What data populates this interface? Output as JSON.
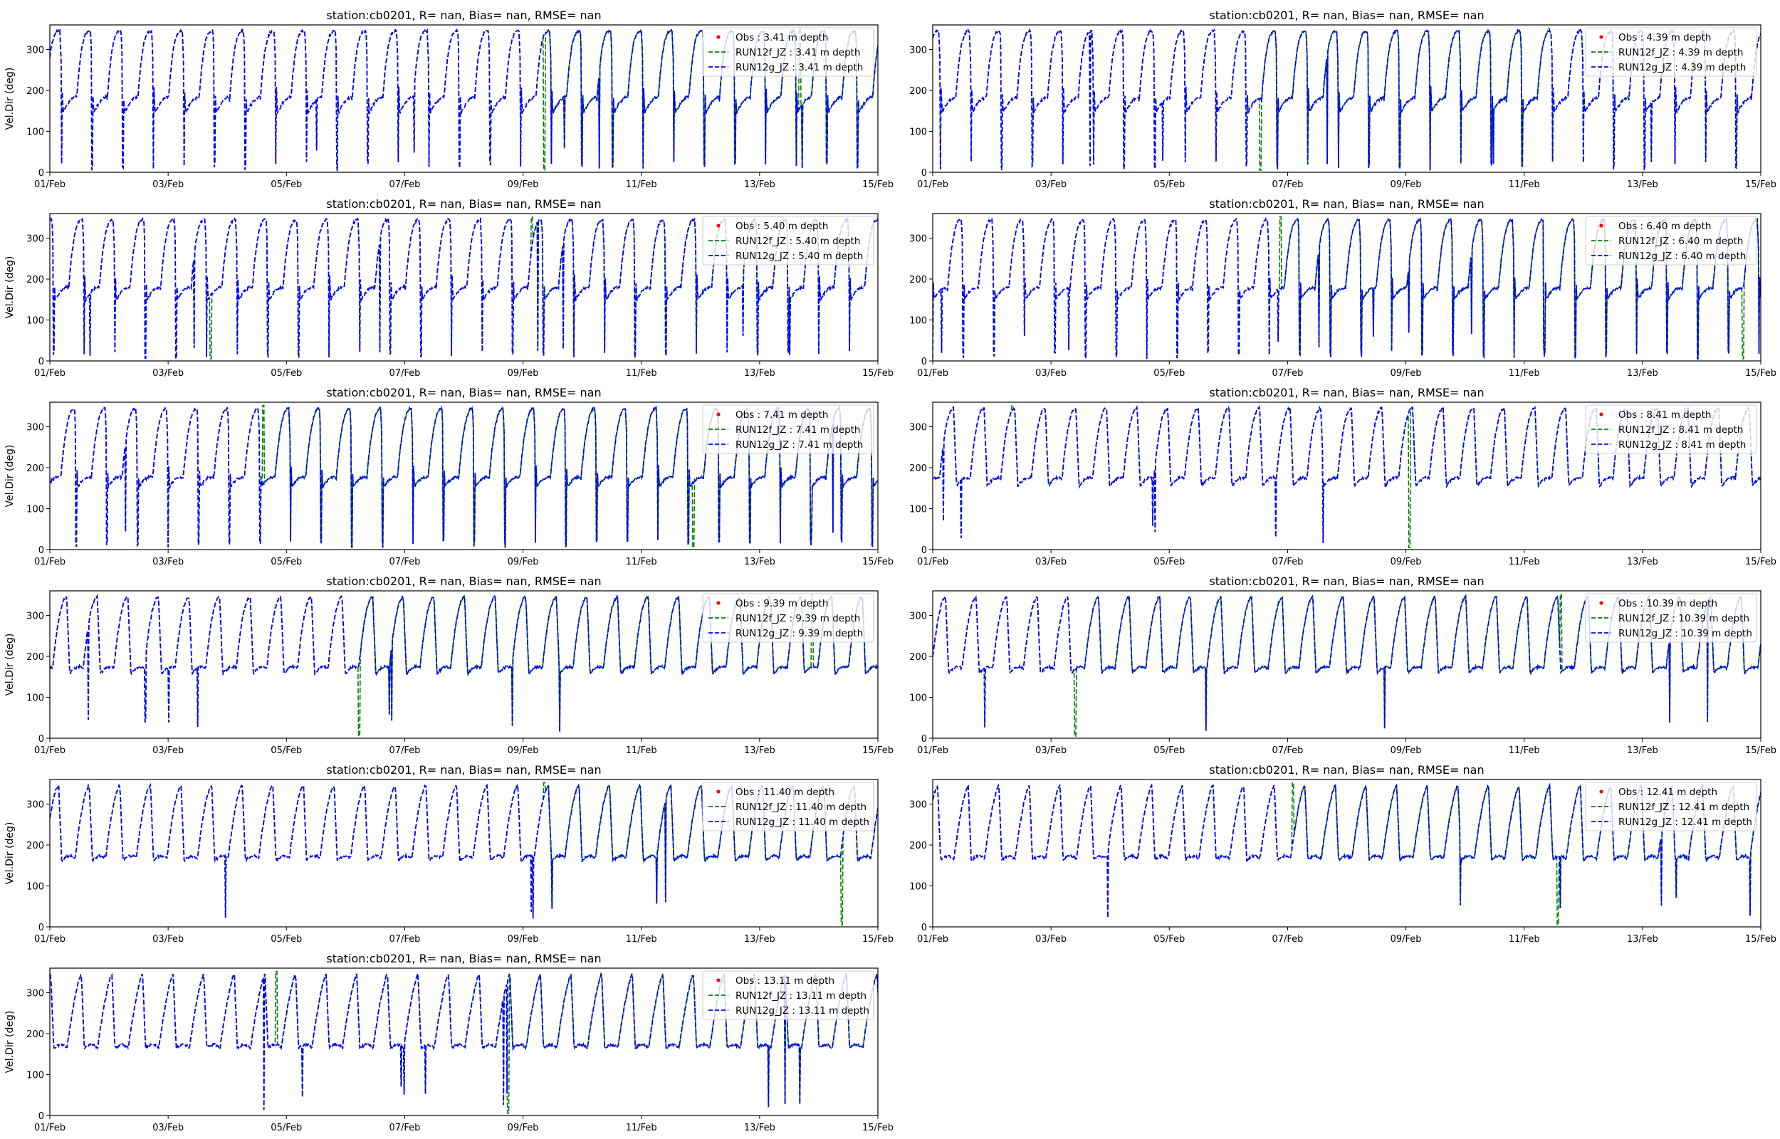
{
  "figure": {
    "xlabel": "",
    "ylabel": "Vel.Dir (deg)",
    "colors": {
      "obs": "#ff0000",
      "run12f": "#008000",
      "run12g": "#0000ff",
      "axes": "#000000",
      "legend_border": "#cccccc"
    }
  },
  "chart_data": [
    {
      "type": "line",
      "title": "station:cb0201, R=   nan, Bias=   nan, RMSE=   nan",
      "ylabel": "Vel.Dir (deg)",
      "xlabel": "",
      "x_ticks": [
        "01/Feb",
        "03/Feb",
        "05/Feb",
        "07/Feb",
        "09/Feb",
        "11/Feb",
        "13/Feb",
        "15/Feb"
      ],
      "xlim": [
        0,
        14
      ],
      "ylim": [
        0,
        360
      ],
      "y_ticks": [
        0,
        100,
        200,
        300
      ],
      "legend": "upper right",
      "series": [
        {
          "name": "Obs : 3.41 m depth",
          "style": "point",
          "values": []
        },
        {
          "name": "RUN12f_JZ : 3.41 m depth",
          "style": "dashed"
        },
        {
          "name": "RUN12g_JZ : 3.41 m depth",
          "style": "dashed"
        }
      ],
      "depth": 3.41,
      "seed": 1
    },
    {
      "type": "line",
      "title": "station:cb0201, R=   nan, Bias=   nan, RMSE=   nan",
      "ylabel": "",
      "xlabel": "",
      "x_ticks": [
        "01/Feb",
        "03/Feb",
        "05/Feb",
        "07/Feb",
        "09/Feb",
        "11/Feb",
        "13/Feb",
        "15/Feb"
      ],
      "xlim": [
        0,
        14
      ],
      "ylim": [
        0,
        360
      ],
      "y_ticks": [
        0,
        100,
        200,
        300
      ],
      "legend": "upper right",
      "series": [
        {
          "name": "Obs : 4.39 m depth",
          "style": "point",
          "values": []
        },
        {
          "name": "RUN12f_JZ : 4.39 m depth",
          "style": "dashed"
        },
        {
          "name": "RUN12g_JZ : 4.39 m depth",
          "style": "dashed"
        }
      ],
      "depth": 4.39,
      "seed": 2
    },
    {
      "type": "line",
      "title": "station:cb0201, R=   nan, Bias=   nan, RMSE=   nan",
      "ylabel": "Vel.Dir (deg)",
      "xlabel": "",
      "x_ticks": [
        "01/Feb",
        "03/Feb",
        "05/Feb",
        "07/Feb",
        "09/Feb",
        "11/Feb",
        "13/Feb",
        "15/Feb"
      ],
      "xlim": [
        0,
        14
      ],
      "ylim": [
        0,
        360
      ],
      "y_ticks": [
        0,
        100,
        200,
        300
      ],
      "legend": "upper right",
      "series": [
        {
          "name": "Obs : 5.40 m depth",
          "style": "point",
          "values": []
        },
        {
          "name": "RUN12f_JZ : 5.40 m depth",
          "style": "dashed"
        },
        {
          "name": "RUN12g_JZ : 5.40 m depth",
          "style": "dashed"
        }
      ],
      "depth": 5.4,
      "seed": 3
    },
    {
      "type": "line",
      "title": "station:cb0201, R=   nan, Bias=   nan, RMSE=   nan",
      "ylabel": "",
      "xlabel": "",
      "x_ticks": [
        "01/Feb",
        "03/Feb",
        "05/Feb",
        "07/Feb",
        "09/Feb",
        "11/Feb",
        "13/Feb",
        "15/Feb"
      ],
      "xlim": [
        0,
        14
      ],
      "ylim": [
        0,
        360
      ],
      "y_ticks": [
        0,
        100,
        200,
        300
      ],
      "legend": "upper right",
      "series": [
        {
          "name": "Obs : 6.40 m depth",
          "style": "point",
          "values": []
        },
        {
          "name": "RUN12f_JZ : 6.40 m depth",
          "style": "dashed"
        },
        {
          "name": "RUN12g_JZ : 6.40 m depth",
          "style": "dashed"
        }
      ],
      "depth": 6.4,
      "seed": 4
    },
    {
      "type": "line",
      "title": "station:cb0201, R=   nan, Bias=   nan, RMSE=   nan",
      "ylabel": "Vel.Dir (deg)",
      "xlabel": "",
      "x_ticks": [
        "01/Feb",
        "03/Feb",
        "05/Feb",
        "07/Feb",
        "09/Feb",
        "11/Feb",
        "13/Feb",
        "15/Feb"
      ],
      "xlim": [
        0,
        14
      ],
      "ylim": [
        0,
        360
      ],
      "y_ticks": [
        0,
        100,
        200,
        300
      ],
      "legend": "upper right",
      "series": [
        {
          "name": "Obs : 7.41 m depth",
          "style": "point",
          "values": []
        },
        {
          "name": "RUN12f_JZ : 7.41 m depth",
          "style": "dashed"
        },
        {
          "name": "RUN12g_JZ : 7.41 m depth",
          "style": "dashed"
        }
      ],
      "depth": 7.41,
      "seed": 5
    },
    {
      "type": "line",
      "title": "station:cb0201, R=   nan, Bias=   nan, RMSE=   nan",
      "ylabel": "",
      "xlabel": "",
      "x_ticks": [
        "01/Feb",
        "03/Feb",
        "05/Feb",
        "07/Feb",
        "09/Feb",
        "11/Feb",
        "13/Feb",
        "15/Feb"
      ],
      "xlim": [
        0,
        14
      ],
      "ylim": [
        0,
        360
      ],
      "y_ticks": [
        0,
        100,
        200,
        300
      ],
      "legend": "upper right",
      "series": [
        {
          "name": "Obs : 8.41 m depth",
          "style": "point",
          "values": []
        },
        {
          "name": "RUN12f_JZ : 8.41 m depth",
          "style": "dashed"
        },
        {
          "name": "RUN12g_JZ : 8.41 m depth",
          "style": "dashed"
        }
      ],
      "depth": 8.41,
      "seed": 6
    },
    {
      "type": "line",
      "title": "station:cb0201, R=   nan, Bias=   nan, RMSE=   nan",
      "ylabel": "Vel.Dir (deg)",
      "xlabel": "",
      "x_ticks": [
        "01/Feb",
        "03/Feb",
        "05/Feb",
        "07/Feb",
        "09/Feb",
        "11/Feb",
        "13/Feb",
        "15/Feb"
      ],
      "xlim": [
        0,
        14
      ],
      "ylim": [
        0,
        360
      ],
      "y_ticks": [
        0,
        100,
        200,
        300
      ],
      "legend": "upper right",
      "series": [
        {
          "name": "Obs : 9.39 m depth",
          "style": "point",
          "values": []
        },
        {
          "name": "RUN12f_JZ : 9.39 m depth",
          "style": "dashed"
        },
        {
          "name": "RUN12g_JZ : 9.39 m depth",
          "style": "dashed"
        }
      ],
      "depth": 9.39,
      "seed": 7
    },
    {
      "type": "line",
      "title": "station:cb0201, R=   nan, Bias=   nan, RMSE=   nan",
      "ylabel": "",
      "xlabel": "",
      "x_ticks": [
        "01/Feb",
        "03/Feb",
        "05/Feb",
        "07/Feb",
        "09/Feb",
        "11/Feb",
        "13/Feb",
        "15/Feb"
      ],
      "xlim": [
        0,
        14
      ],
      "ylim": [
        0,
        360
      ],
      "y_ticks": [
        0,
        100,
        200,
        300
      ],
      "legend": "upper right",
      "series": [
        {
          "name": "Obs : 10.39 m depth",
          "style": "point",
          "values": []
        },
        {
          "name": "RUN12f_JZ : 10.39 m depth",
          "style": "dashed"
        },
        {
          "name": "RUN12g_JZ : 10.39 m depth",
          "style": "dashed"
        }
      ],
      "depth": 10.39,
      "seed": 8
    },
    {
      "type": "line",
      "title": "station:cb0201, R=   nan, Bias=   nan, RMSE=   nan",
      "ylabel": "Vel.Dir (deg)",
      "xlabel": "",
      "x_ticks": [
        "01/Feb",
        "03/Feb",
        "05/Feb",
        "07/Feb",
        "09/Feb",
        "11/Feb",
        "13/Feb",
        "15/Feb"
      ],
      "xlim": [
        0,
        14
      ],
      "ylim": [
        0,
        360
      ],
      "y_ticks": [
        0,
        100,
        200,
        300
      ],
      "legend": "upper right",
      "series": [
        {
          "name": "Obs : 11.40 m depth",
          "style": "point",
          "values": []
        },
        {
          "name": "RUN12f_JZ : 11.40 m depth",
          "style": "dashed"
        },
        {
          "name": "RUN12g_JZ : 11.40 m depth",
          "style": "dashed"
        }
      ],
      "depth": 11.4,
      "seed": 9
    },
    {
      "type": "line",
      "title": "station:cb0201, R=   nan, Bias=   nan, RMSE=   nan",
      "ylabel": "",
      "xlabel": "",
      "x_ticks": [
        "01/Feb",
        "03/Feb",
        "05/Feb",
        "07/Feb",
        "09/Feb",
        "11/Feb",
        "13/Feb",
        "15/Feb"
      ],
      "xlim": [
        0,
        14
      ],
      "ylim": [
        0,
        360
      ],
      "y_ticks": [
        0,
        100,
        200,
        300
      ],
      "legend": "upper right",
      "series": [
        {
          "name": "Obs : 12.41 m depth",
          "style": "point",
          "values": []
        },
        {
          "name": "RUN12f_JZ : 12.41 m depth",
          "style": "dashed"
        },
        {
          "name": "RUN12g_JZ : 12.41 m depth",
          "style": "dashed"
        }
      ],
      "depth": 12.41,
      "seed": 10
    },
    {
      "type": "line",
      "title": "station:cb0201, R=   nan, Bias=   nan, RMSE=   nan",
      "ylabel": "Vel.Dir (deg)",
      "xlabel": "",
      "x_ticks": [
        "01/Feb",
        "03/Feb",
        "05/Feb",
        "07/Feb",
        "09/Feb",
        "11/Feb",
        "13/Feb",
        "15/Feb"
      ],
      "xlim": [
        0,
        14
      ],
      "ylim": [
        0,
        360
      ],
      "y_ticks": [
        0,
        100,
        200,
        300
      ],
      "legend": "upper right",
      "series": [
        {
          "name": "Obs : 13.11 m depth",
          "style": "point",
          "values": []
        },
        {
          "name": "RUN12f_JZ : 13.11 m depth",
          "style": "dashed"
        },
        {
          "name": "RUN12g_JZ : 13.11 m depth",
          "style": "dashed"
        }
      ],
      "depth": 13.11,
      "seed": 11
    }
  ]
}
